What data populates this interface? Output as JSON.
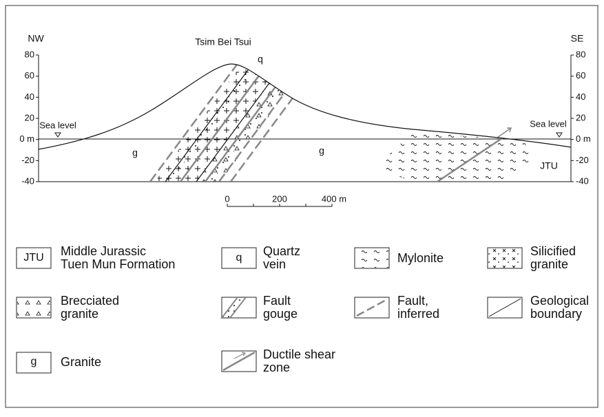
{
  "section": {
    "title": "Tsim Bei Tsui",
    "left_end": "NW",
    "right_end": "SE",
    "vein_label": "q",
    "sea_level_left": "Sea level",
    "sea_level_right": "Sea level",
    "unit_labels": [
      "g",
      "g",
      "JTU"
    ],
    "left_ticks": [
      "80",
      "60",
      "40",
      "20",
      "0 m",
      "-20",
      "-40"
    ],
    "right_ticks": [
      "80",
      "60",
      "40",
      "20",
      "0 m",
      "-20",
      "-40"
    ],
    "scale_bar": [
      "0",
      "200",
      "400 m"
    ]
  },
  "legend": [
    {
      "symbol": "JTU",
      "label": [
        "Middle Jurassic",
        "Tuen Mun Formation"
      ]
    },
    {
      "symbol": "q",
      "label": [
        "Quartz",
        "vein"
      ]
    },
    {
      "label": [
        "Mylonite"
      ]
    },
    {
      "label": [
        "Silicified",
        "granite"
      ]
    },
    {
      "label": [
        "Brecciated",
        "granite"
      ]
    },
    {
      "label": [
        "Fault",
        "gouge"
      ]
    },
    {
      "label": [
        "Fault,",
        "inferred"
      ]
    },
    {
      "label": [
        "Geological",
        "boundary"
      ]
    },
    {
      "symbol": "g",
      "label": [
        "Granite"
      ]
    },
    {
      "label": [
        "Ductile shear",
        "zone"
      ]
    }
  ]
}
